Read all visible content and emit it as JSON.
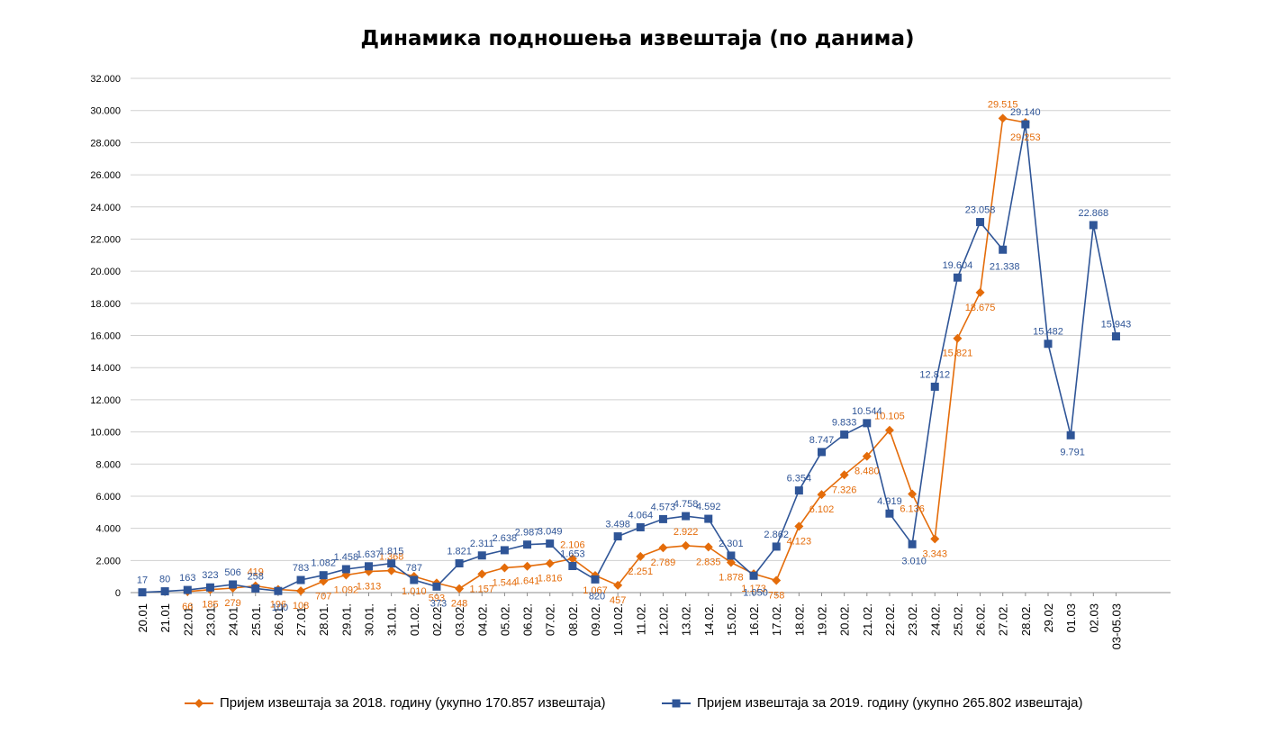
{
  "chart_data": {
    "type": "line",
    "title": "Динамика подношења извештаја (по данима)",
    "xlabel": "",
    "ylabel": "",
    "ylim": [
      0,
      32000
    ],
    "yticks": [
      0,
      2000,
      4000,
      6000,
      8000,
      10000,
      12000,
      14000,
      16000,
      18000,
      20000,
      22000,
      24000,
      26000,
      28000,
      30000,
      32000
    ],
    "ytick_labels": [
      "0",
      "2.000",
      "4.000",
      "6.000",
      "8.000",
      "10.000",
      "12.000",
      "14.000",
      "16.000",
      "18.000",
      "20.000",
      "22.000",
      "24.000",
      "26.000",
      "28.000",
      "30.000",
      "32.000"
    ],
    "grid": true,
    "legend_position": "bottom",
    "categories": [
      "20.01",
      "21.01",
      "22.01.",
      "23.01.",
      "24.01.",
      "25.01.",
      "26.01.",
      "27.01.",
      "28.01.",
      "29.01.",
      "30.01.",
      "31.01.",
      "01.02.",
      "02.02.",
      "03.02.",
      "04.02.",
      "05.02.",
      "06.02.",
      "07.02.",
      "08.02.",
      "09.02.",
      "10.02.",
      "11.02.",
      "12.02.",
      "13.02.",
      "14.02.",
      "15.02.",
      "16.02.",
      "17.02.",
      "18.02.",
      "19.02.",
      "20.02.",
      "21.02.",
      "22.02.",
      "23.02.",
      "24.02.",
      "25.02.",
      "26.02.",
      "27.02.",
      "28.02.",
      "29.02",
      "01.03",
      "02.03",
      "03-05.03"
    ],
    "series": [
      {
        "name": "Пријем извештаја за 2018. годину (укупно 170.857 извештаја)",
        "color": "#E46C0A",
        "marker": "diamond",
        "values": [
          null,
          null,
          66,
          185,
          279,
          419,
          196,
          108,
          707,
          1092,
          1313,
          1368,
          1010,
          593,
          248,
          1157,
          1544,
          1641,
          1816,
          2106,
          1067,
          457,
          2251,
          2789,
          2922,
          2835,
          1878,
          1173,
          758,
          4123,
          6102,
          7326,
          8480,
          10105,
          6136,
          3343,
          15821,
          18675,
          29515,
          29253,
          null,
          null,
          null,
          null
        ],
        "labels": [
          "",
          "",
          "66",
          "185",
          "279",
          "419",
          "196",
          "108",
          "707",
          "1.092",
          "1.313",
          "1.368",
          "1.010",
          "593",
          "248",
          "1.157",
          "1.544",
          "1.641",
          "1.816",
          "2.106",
          "1.067",
          "457",
          "2.251",
          "2.789",
          "2.922",
          "2.835",
          "1.878",
          "1.173",
          "758",
          "4.123",
          "6.102",
          "7.326",
          "8.480",
          "10.105",
          "6.136",
          "3.343",
          "15.821",
          "18.675",
          "29.515",
          "29.253",
          "",
          "",
          "",
          ""
        ]
      },
      {
        "name": "Пријем извештаја за 2019. годину (укупно 265.802 извештаја)",
        "color": "#2F5597",
        "marker": "square",
        "values": [
          17,
          80,
          163,
          323,
          506,
          258,
          100,
          783,
          1082,
          1458,
          1637,
          1815,
          787,
          373,
          1821,
          2311,
          2638,
          2987,
          3049,
          1653,
          820,
          3498,
          4064,
          4573,
          4758,
          4592,
          2301,
          1050,
          2862,
          6354,
          8747,
          9833,
          10544,
          4919,
          3010,
          12812,
          19604,
          23058,
          21338,
          29140,
          15482,
          9791,
          22868,
          15943
        ],
        "labels": [
          "17",
          "80",
          "163",
          "323",
          "506",
          "258",
          "100",
          "783",
          "1.082",
          "1.458",
          "1.637",
          "1.815",
          "787",
          "373",
          "1.821",
          "2.311",
          "2.638",
          "2.987",
          "3.049",
          "1.653",
          "820",
          "3.498",
          "4.064",
          "4.573",
          "4.758",
          "4.592",
          "2.301",
          "1.050",
          "2.862",
          "6.354",
          "8.747",
          "9.833",
          "10.544",
          "4.919",
          "3.010",
          "12.812",
          "19.604",
          "23.058",
          "21.338",
          "29.140",
          "15.482",
          "9.791",
          "22.868",
          "15.943"
        ]
      }
    ]
  }
}
